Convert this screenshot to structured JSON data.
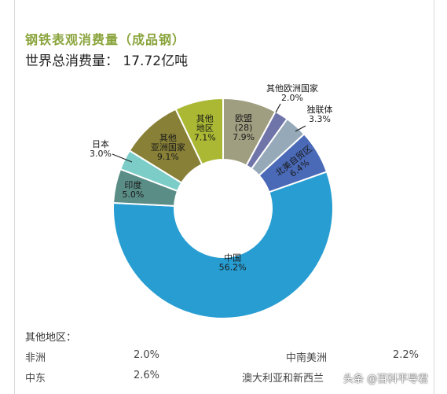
{
  "title": "钢铁表观消费量（成品钢）",
  "subtitle": "世界总消费量： 17.72亿吨",
  "chart_data": {
    "type": "pie",
    "title": "钢铁表观消费量（成品钢）",
    "total_label": "世界总消费量： 17.72亿吨",
    "unit": "%",
    "slices": [
      {
        "name": "欧盟 (28)",
        "value": 7.9,
        "value_label": "7.9%",
        "color": "#a09e80"
      },
      {
        "name": "其他欧洲国家",
        "value": 2.0,
        "value_label": "2.0%",
        "color": "#6f74a9"
      },
      {
        "name": "独联体",
        "value": 3.3,
        "value_label": "3.3%",
        "color": "#95a9b9"
      },
      {
        "name": "北美自贸区",
        "value": 6.4,
        "value_label": "6.4%",
        "color": "#4a6ab8"
      },
      {
        "name": "中国",
        "value": 56.2,
        "value_label": "56.2%",
        "color": "#279dd2"
      },
      {
        "name": "印度",
        "value": 5.0,
        "value_label": "5.0%",
        "color": "#5a8d86"
      },
      {
        "name": "日本",
        "value": 3.0,
        "value_label": "3.0%",
        "color": "#7ccdc8"
      },
      {
        "name": "其他亚洲国家",
        "value": 9.1,
        "value_label": "9.1%",
        "color": "#888037"
      },
      {
        "name": "其他地区",
        "value": 7.1,
        "value_label": "7.1%",
        "color": "#aab833"
      }
    ],
    "label_lines": {
      "欧盟 (28)": [
        "欧盟",
        "(28)",
        "7.9%"
      ],
      "其他欧洲国家": [
        "其他欧洲国家",
        "2.0%"
      ],
      "独联体": [
        "独联体",
        "3.3%"
      ],
      "北美自贸区": [
        "北美自贸区",
        "6.4%"
      ],
      "中国": [
        "中国",
        "56.2%"
      ],
      "印度": [
        "印度",
        "5.0%"
      ],
      "日本": [
        "日本",
        "3.0%"
      ],
      "其他亚洲国家": [
        "其他",
        "亚洲国家",
        "9.1%"
      ],
      "其他地区": [
        "其他",
        "地区",
        "7.1%"
      ]
    }
  },
  "other_regions": {
    "heading": "其他地区：",
    "items": [
      {
        "name": "非洲",
        "value": "2.0%"
      },
      {
        "name": "中南美洲",
        "value": "2.2%"
      },
      {
        "name": "中东",
        "value": "2.6%"
      },
      {
        "name": "澳大利亚和新西兰",
        "value": ""
      }
    ]
  },
  "watermark": "头条 @百科平导君"
}
